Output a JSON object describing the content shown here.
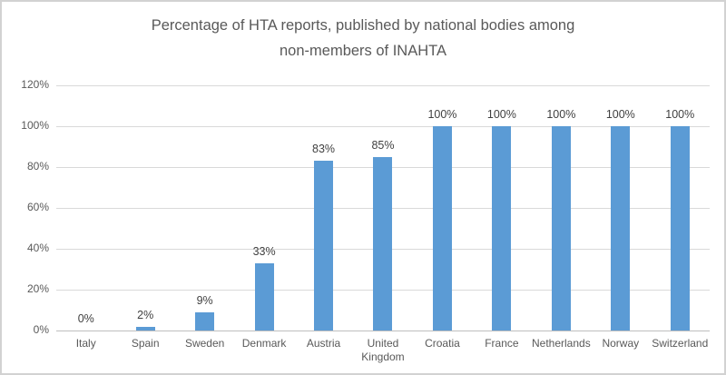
{
  "chart_data": {
    "type": "bar",
    "title": "Percentage of HTA reports, published by national bodies among non-members of INAHTA",
    "title_lines": [
      "Percentage of HTA reports, published by national bodies among",
      "non-members of INAHTA"
    ],
    "categories": [
      "Italy",
      "Spain",
      "Sweden",
      "Denmark",
      "Austria",
      "United Kingdom",
      "Croatia",
      "France",
      "Netherlands",
      "Norway",
      "Switzerland"
    ],
    "values": [
      0,
      2,
      9,
      33,
      83,
      85,
      100,
      100,
      100,
      100,
      100
    ],
    "value_labels": [
      "0%",
      "2%",
      "9%",
      "33%",
      "83%",
      "85%",
      "100%",
      "100%",
      "100%",
      "100%",
      "100%"
    ],
    "xlabel": "",
    "ylabel": "",
    "ylim": [
      0,
      120
    ],
    "y_tick_step": 20,
    "y_tick_labels": [
      "0%",
      "20%",
      "40%",
      "60%",
      "80%",
      "100%",
      "120%"
    ],
    "grid": "horizontal",
    "legend": "none",
    "colors": {
      "bar": "#5b9bd5",
      "gridline": "#d9d9d9",
      "axis_line": "#bfbfbf",
      "title_text": "#595959",
      "axis_text": "#595959",
      "data_label_text": "#404040",
      "background": "#ffffff",
      "frame_border": "#d2d2d2"
    }
  }
}
